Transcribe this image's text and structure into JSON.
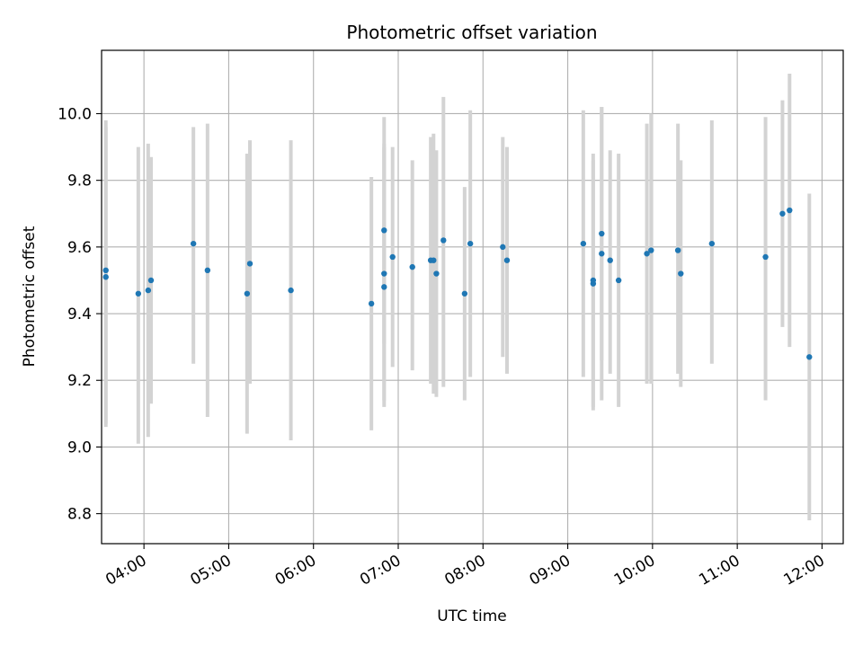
{
  "chart_data": {
    "type": "scatter",
    "title": "Photometric offset variation",
    "xlabel": "UTC time",
    "ylabel": "Photometric offset",
    "x_axis": {
      "kind": "time",
      "range": [
        "03:30",
        "12:15"
      ],
      "ticks": [
        "04:00",
        "05:00",
        "06:00",
        "07:00",
        "08:00",
        "09:00",
        "10:00",
        "11:00",
        "12:00"
      ]
    },
    "y_axis": {
      "range": [
        8.71,
        10.19
      ],
      "ticks": [
        "8.8",
        "9.0",
        "9.2",
        "9.4",
        "9.6",
        "9.8",
        "10.0"
      ]
    },
    "grid": true,
    "error_bars": true,
    "colors": {
      "point": "#1f77b4",
      "error_bar": "#d3d3d3",
      "grid": "#b0b0b0"
    },
    "points": [
      {
        "x": "03:33",
        "y": 9.53,
        "err_low": 9.07,
        "err_high": 9.98
      },
      {
        "x": "03:33",
        "y": 9.51,
        "err_low": 9.06,
        "err_high": 9.96
      },
      {
        "x": "03:56",
        "y": 9.46,
        "err_low": 9.01,
        "err_high": 9.9
      },
      {
        "x": "04:03",
        "y": 9.47,
        "err_low": 9.03,
        "err_high": 9.91
      },
      {
        "x": "04:05",
        "y": 9.5,
        "err_low": 9.13,
        "err_high": 9.87
      },
      {
        "x": "04:35",
        "y": 9.61,
        "err_low": 9.25,
        "err_high": 9.96
      },
      {
        "x": "04:45",
        "y": 9.53,
        "err_low": 9.09,
        "err_high": 9.97
      },
      {
        "x": "05:13",
        "y": 9.46,
        "err_low": 9.04,
        "err_high": 9.88
      },
      {
        "x": "05:15",
        "y": 9.55,
        "err_low": 9.19,
        "err_high": 9.92
      },
      {
        "x": "05:44",
        "y": 9.47,
        "err_low": 9.02,
        "err_high": 9.92
      },
      {
        "x": "06:41",
        "y": 9.43,
        "err_low": 9.05,
        "err_high": 9.81
      },
      {
        "x": "06:50",
        "y": 9.65,
        "err_low": 9.31,
        "err_high": 9.99
      },
      {
        "x": "06:50",
        "y": 9.52,
        "err_low": 9.12,
        "err_high": 9.91
      },
      {
        "x": "06:50",
        "y": 9.48,
        "err_low": 9.14,
        "err_high": 9.9
      },
      {
        "x": "06:56",
        "y": 9.57,
        "err_low": 9.24,
        "err_high": 9.9
      },
      {
        "x": "07:10",
        "y": 9.54,
        "err_low": 9.23,
        "err_high": 9.86
      },
      {
        "x": "07:23",
        "y": 9.56,
        "err_low": 9.19,
        "err_high": 9.93
      },
      {
        "x": "07:25",
        "y": 9.56,
        "err_low": 9.16,
        "err_high": 9.94
      },
      {
        "x": "07:27",
        "y": 9.52,
        "err_low": 9.15,
        "err_high": 9.89
      },
      {
        "x": "07:32",
        "y": 9.62,
        "err_low": 9.18,
        "err_high": 10.05
      },
      {
        "x": "07:47",
        "y": 9.46,
        "err_low": 9.14,
        "err_high": 9.78
      },
      {
        "x": "07:51",
        "y": 9.61,
        "err_low": 9.21,
        "err_high": 10.01
      },
      {
        "x": "08:14",
        "y": 9.6,
        "err_low": 9.27,
        "err_high": 9.93
      },
      {
        "x": "08:17",
        "y": 9.56,
        "err_low": 9.22,
        "err_high": 9.9
      },
      {
        "x": "09:11",
        "y": 9.61,
        "err_low": 9.21,
        "err_high": 10.01
      },
      {
        "x": "09:18",
        "y": 9.5,
        "err_low": 9.11,
        "err_high": 9.88
      },
      {
        "x": "09:18",
        "y": 9.49,
        "err_low": 9.12,
        "err_high": 9.86
      },
      {
        "x": "09:24",
        "y": 9.64,
        "err_low": 9.26,
        "err_high": 10.02
      },
      {
        "x": "09:24",
        "y": 9.58,
        "err_low": 9.14,
        "err_high": 10.02
      },
      {
        "x": "09:30",
        "y": 9.56,
        "err_low": 9.22,
        "err_high": 9.89
      },
      {
        "x": "09:36",
        "y": 9.5,
        "err_low": 9.12,
        "err_high": 9.88
      },
      {
        "x": "09:56",
        "y": 9.58,
        "err_low": 9.19,
        "err_high": 9.97
      },
      {
        "x": "09:59",
        "y": 9.59,
        "err_low": 9.19,
        "err_high": 10.0
      },
      {
        "x": "10:18",
        "y": 9.59,
        "err_low": 9.22,
        "err_high": 9.97
      },
      {
        "x": "10:20",
        "y": 9.52,
        "err_low": 9.18,
        "err_high": 9.86
      },
      {
        "x": "10:42",
        "y": 9.61,
        "err_low": 9.25,
        "err_high": 9.98
      },
      {
        "x": "11:20",
        "y": 9.57,
        "err_low": 9.14,
        "err_high": 9.99
      },
      {
        "x": "11:32",
        "y": 9.7,
        "err_low": 9.36,
        "err_high": 10.04
      },
      {
        "x": "11:37",
        "y": 9.71,
        "err_low": 9.3,
        "err_high": 10.12
      },
      {
        "x": "11:51",
        "y": 9.27,
        "err_low": 8.78,
        "err_high": 9.76
      }
    ]
  }
}
